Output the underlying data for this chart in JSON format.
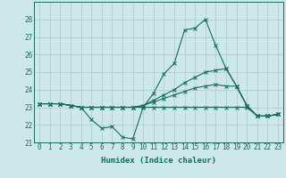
{
  "background_color": "#cce8e8",
  "grid_color": "#aacccc",
  "line_color": "#1a6b5a",
  "xlabel": "Humidex (Indice chaleur)",
  "ylim": [
    21,
    29
  ],
  "xlim": [
    -0.5,
    23.5
  ],
  "yticks": [
    21,
    22,
    23,
    24,
    25,
    26,
    27,
    28
  ],
  "xticks": [
    0,
    1,
    2,
    3,
    4,
    5,
    6,
    7,
    8,
    9,
    10,
    11,
    12,
    13,
    14,
    15,
    16,
    17,
    18,
    19,
    20,
    21,
    22,
    23
  ],
  "series": [
    [
      23.2,
      23.2,
      23.2,
      23.1,
      23.0,
      22.3,
      21.8,
      21.9,
      21.3,
      21.2,
      23.0,
      23.8,
      24.9,
      25.5,
      27.4,
      27.5,
      28.0,
      26.5,
      25.2,
      24.2,
      23.1,
      22.5,
      22.5,
      22.6
    ],
    [
      23.2,
      23.2,
      23.2,
      23.1,
      23.0,
      23.0,
      23.0,
      23.0,
      23.0,
      23.0,
      23.1,
      23.4,
      23.7,
      24.0,
      24.4,
      24.7,
      25.0,
      25.1,
      25.2,
      24.2,
      23.1,
      22.5,
      22.5,
      22.6
    ],
    [
      23.2,
      23.2,
      23.2,
      23.1,
      23.0,
      23.0,
      23.0,
      23.0,
      23.0,
      23.0,
      23.1,
      23.3,
      23.5,
      23.7,
      23.9,
      24.1,
      24.2,
      24.3,
      24.2,
      24.2,
      23.1,
      22.5,
      22.5,
      22.6
    ],
    [
      23.2,
      23.2,
      23.2,
      23.1,
      23.0,
      23.0,
      23.0,
      23.0,
      23.0,
      23.0,
      23.0,
      23.0,
      23.0,
      23.0,
      23.0,
      23.0,
      23.0,
      23.0,
      23.0,
      23.0,
      23.0,
      22.5,
      22.5,
      22.6
    ]
  ],
  "marker_series": [
    0
  ],
  "font_size_tick": 5.5,
  "font_size_label": 6.5
}
